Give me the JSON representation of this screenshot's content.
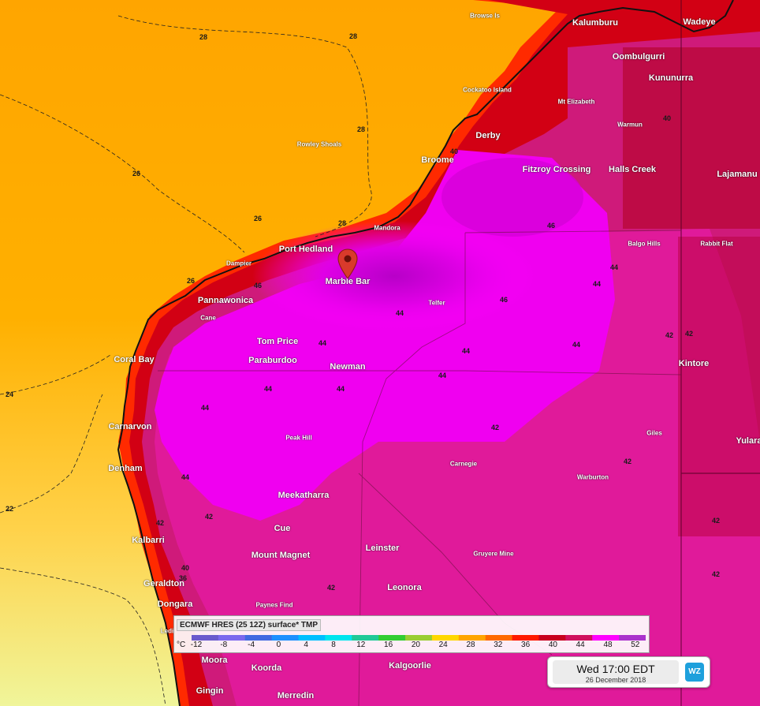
{
  "map": {
    "places_large": [
      {
        "name": "Kalumburu"
      },
      {
        "name": "Wadeye"
      },
      {
        "name": "Oombulgurri"
      },
      {
        "name": "Kununurra"
      },
      {
        "name": "Derby"
      },
      {
        "name": "Broome"
      },
      {
        "name": "Fitzroy Crossing"
      },
      {
        "name": "Halls Creek"
      },
      {
        "name": "Lajamanu"
      },
      {
        "name": "Port Hedland"
      },
      {
        "name": "Marble Bar"
      },
      {
        "name": "Pannawonica"
      },
      {
        "name": "Tom Price"
      },
      {
        "name": "Paraburdoo"
      },
      {
        "name": "Newman"
      },
      {
        "name": "Coral Bay"
      },
      {
        "name": "Carnarvon"
      },
      {
        "name": "Denham"
      },
      {
        "name": "Meekatharra"
      },
      {
        "name": "Cue"
      },
      {
        "name": "Mount Magnet"
      },
      {
        "name": "Leinster"
      },
      {
        "name": "Leonora"
      },
      {
        "name": "Kalbarri"
      },
      {
        "name": "Geraldton"
      },
      {
        "name": "Dongara"
      },
      {
        "name": "Kintore"
      },
      {
        "name": "Yulara"
      },
      {
        "name": "Moora"
      },
      {
        "name": "Koorda"
      },
      {
        "name": "Kalgoorlie"
      },
      {
        "name": "Gingin"
      },
      {
        "name": "Merredin"
      }
    ],
    "places_small": [
      {
        "name": "Browse Is"
      },
      {
        "name": "Cockatoo Island"
      },
      {
        "name": "Mt Elizabeth"
      },
      {
        "name": "Warmun"
      },
      {
        "name": "Rowley Shoals"
      },
      {
        "name": "Mandora"
      },
      {
        "name": "Dampier"
      },
      {
        "name": "Telfer"
      },
      {
        "name": "Balgo Hills"
      },
      {
        "name": "Rabbit Flat"
      },
      {
        "name": "Cane"
      },
      {
        "name": "Peak Hill"
      },
      {
        "name": "Carnegie"
      },
      {
        "name": "Warburton"
      },
      {
        "name": "Giles"
      },
      {
        "name": "Gruyere Mine"
      },
      {
        "name": "Paynes Find"
      },
      {
        "name": "Ledi"
      }
    ],
    "isotherm_labels": [
      {
        "t": "28"
      },
      {
        "t": "28"
      },
      {
        "t": "28"
      },
      {
        "t": "26"
      },
      {
        "t": "26"
      },
      {
        "t": "26"
      },
      {
        "t": "24"
      },
      {
        "t": "22"
      },
      {
        "t": "28"
      },
      {
        "t": "40"
      },
      {
        "t": "46"
      },
      {
        "t": "46"
      },
      {
        "t": "44"
      },
      {
        "t": "44"
      },
      {
        "t": "44"
      },
      {
        "t": "44"
      },
      {
        "t": "44"
      },
      {
        "t": "44"
      },
      {
        "t": "44"
      },
      {
        "t": "44"
      },
      {
        "t": "42"
      },
      {
        "t": "42"
      },
      {
        "t": "42"
      },
      {
        "t": "42"
      },
      {
        "t": "42"
      },
      {
        "t": "40"
      },
      {
        "t": "40"
      },
      {
        "t": "36"
      },
      {
        "t": "44"
      },
      {
        "t": "44"
      },
      {
        "t": "46"
      },
      {
        "t": "44"
      },
      {
        "t": "42"
      },
      {
        "t": "42"
      },
      {
        "t": "42"
      },
      {
        "t": "42"
      }
    ]
  },
  "marker": {
    "label": "location-pin",
    "color": "#d93a2b"
  },
  "legend": {
    "title": "ECMWF HRES (25 12Z) surface* TMP",
    "unit": "°C",
    "ticks": [
      "-12",
      "-8",
      "-4",
      "0",
      "4",
      "8",
      "12",
      "16",
      "20",
      "24",
      "28",
      "32",
      "36",
      "40",
      "44",
      "48",
      "52"
    ],
    "colors": [
      "#6a5acd",
      "#7b68ee",
      "#4169e1",
      "#1e90ff",
      "#00bfff",
      "#00e5ee",
      "#20c997",
      "#32cd32",
      "#9acd32",
      "#ffd700",
      "#ffa500",
      "#ff6a00",
      "#ff1a00",
      "#c8001e",
      "#d0105e",
      "#ff00ff",
      "#aa33cc"
    ]
  },
  "time": {
    "main": "Wed 17:00 EDT",
    "date": "26 December 2018"
  },
  "logo": {
    "text": "WZ"
  }
}
